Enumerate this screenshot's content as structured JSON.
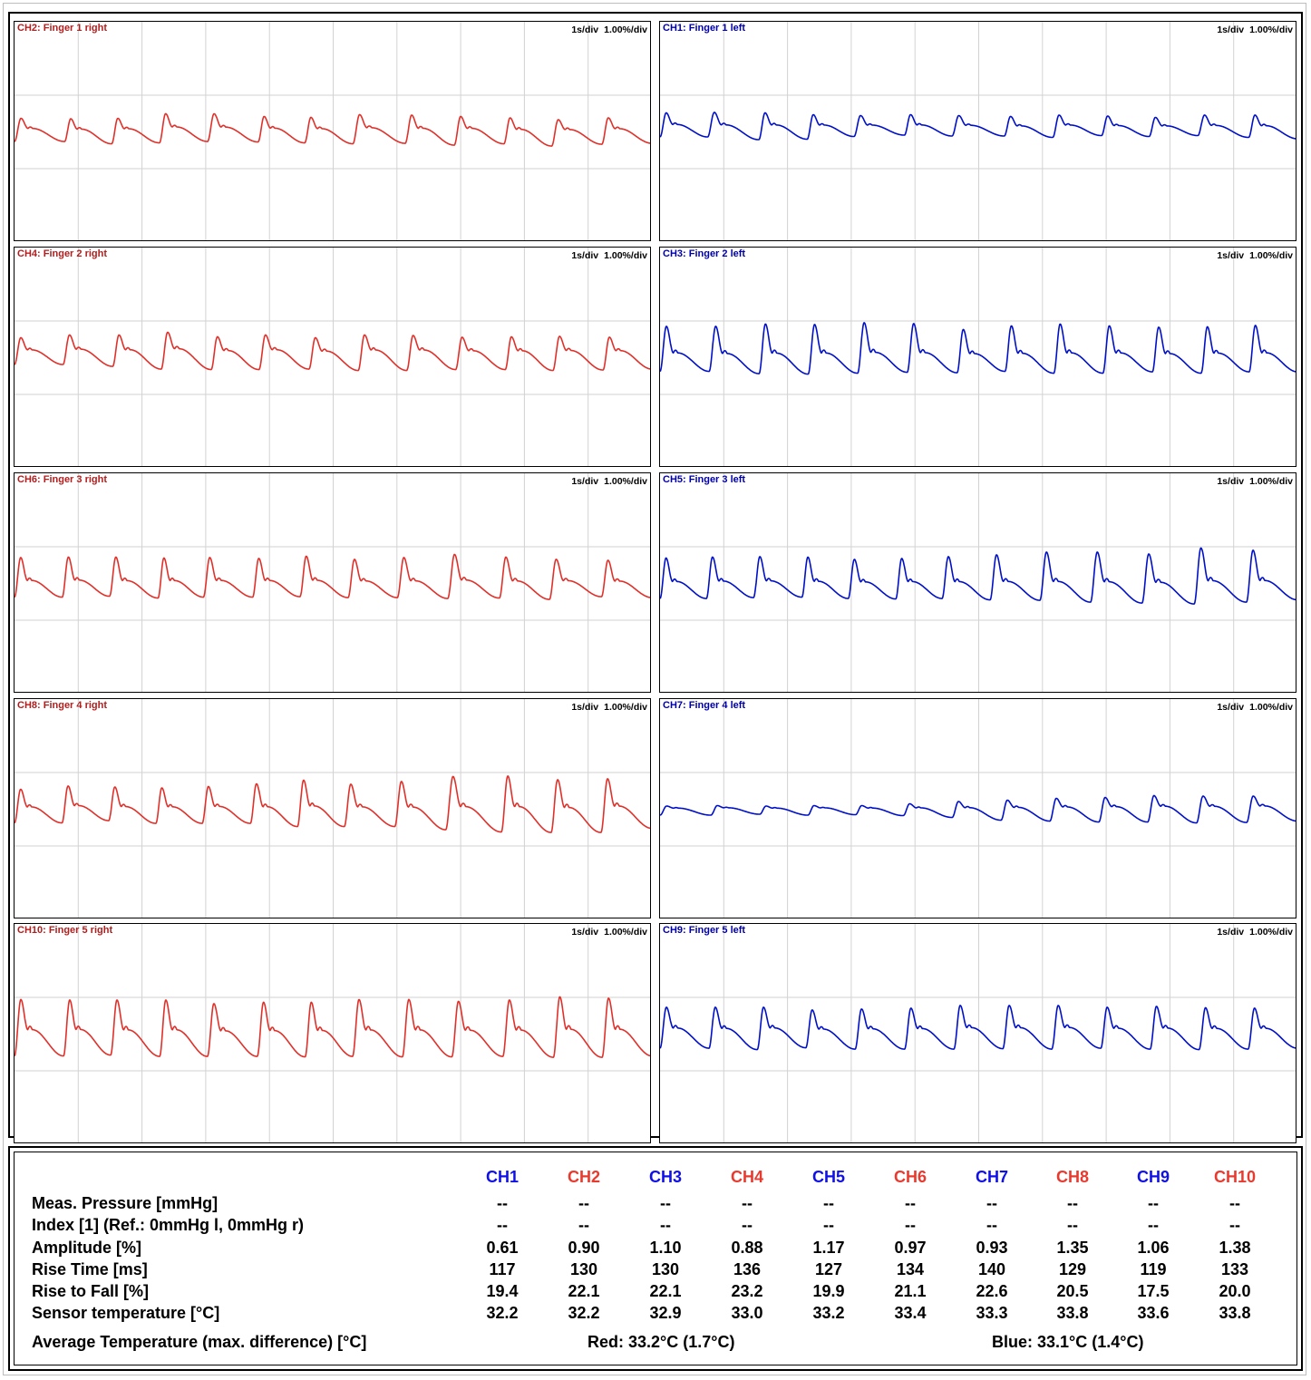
{
  "scale": {
    "time": "1s/div",
    "amplitude": "1.00%/div"
  },
  "colors": {
    "right": "#e0302a",
    "left": "#0010c8",
    "right_title": "#b01e1e",
    "left_title": "#0000a8"
  },
  "chart_data": [
    {
      "type": "line",
      "title": "CH2: Finger 1 right",
      "side": "right",
      "beats": [
        12.9,
        12.1,
        12.3,
        12.4,
        13.0,
        12.0,
        12.4,
        13.5,
        12.6,
        12.8,
        12.3,
        12.9,
        12.9
      ],
      "peaks": [
        0.23,
        0.22,
        0.23,
        0.33,
        0.33,
        0.27,
        0.25,
        0.31,
        0.3,
        0.27,
        0.24,
        0.2,
        0.24
      ],
      "troughs": [
        -0.28,
        -0.33,
        -0.31,
        -0.28,
        -0.29,
        -0.31,
        -0.33,
        -0.32,
        -0.36,
        -0.33,
        -0.38,
        -0.34,
        -0.32
      ],
      "start_phase": 0.88,
      "notch": 0.32,
      "grid_x": 10,
      "grid_y": 3
    },
    {
      "type": "line",
      "title": "CH1: Finger 1 left",
      "side": "left",
      "beats": [
        12.3,
        13.2,
        12.5,
        12.1,
        13.0,
        12.3,
        13.5,
        12.5,
        12.6,
        12.3,
        12.6,
        13.1,
        12.6
      ],
      "peaks": [
        0.35,
        0.36,
        0.35,
        0.31,
        0.29,
        0.31,
        0.29,
        0.27,
        0.3,
        0.28,
        0.25,
        0.3,
        0.3
      ],
      "troughs": [
        -0.18,
        -0.24,
        -0.23,
        -0.17,
        -0.14,
        -0.16,
        -0.16,
        -0.19,
        -0.15,
        -0.17,
        -0.15,
        -0.19,
        -0.22
      ],
      "start_phase": 0.9,
      "notch": 0.38,
      "grid_x": 10,
      "grid_y": 3
    },
    {
      "type": "line",
      "title": "CH4: Finger 2 right",
      "side": "right",
      "beats": [
        12.5,
        12.8,
        12.5,
        12.9,
        12.3,
        12.9,
        12.7,
        12.5,
        12.6,
        12.8,
        12.3,
        12.9,
        12.6
      ],
      "peaks": [
        0.37,
        0.43,
        0.43,
        0.49,
        0.39,
        0.43,
        0.37,
        0.43,
        0.42,
        0.38,
        0.39,
        0.4,
        0.38
      ],
      "troughs": [
        -0.22,
        -0.26,
        -0.32,
        -0.33,
        -0.33,
        -0.32,
        -0.35,
        -0.35,
        -0.33,
        -0.33,
        -0.35,
        -0.34,
        -0.32
      ],
      "start_phase": 0.05,
      "notch": 0.4,
      "grid_x": 10,
      "grid_y": 3
    },
    {
      "type": "line",
      "title": "CH3: Finger 2 left",
      "side": "left",
      "beats": [
        12.7,
        12.9,
        12.7,
        12.8,
        12.8,
        12.9,
        12.4,
        12.6,
        12.7,
        12.8,
        12.6,
        12.4,
        12.5
      ],
      "peaks": [
        0.62,
        0.62,
        0.67,
        0.66,
        0.7,
        0.68,
        0.55,
        0.63,
        0.67,
        0.63,
        0.6,
        0.61,
        0.64
      ],
      "troughs": [
        -0.37,
        -0.42,
        -0.43,
        -0.41,
        -0.39,
        -0.4,
        -0.37,
        -0.41,
        -0.41,
        -0.38,
        -0.41,
        -0.38,
        -0.38
      ],
      "start_phase": 0.05,
      "notch": 0.22,
      "grid_x": 10,
      "grid_y": 3
    },
    {
      "type": "line",
      "title": "CH6: Finger 3 right",
      "side": "right",
      "beats": [
        12.2,
        12.1,
        12.4,
        11.6,
        12.6,
        12.1,
        12.3,
        12.6,
        12.9,
        13.2,
        12.8,
        13.3,
        12.9
      ],
      "peaks": [
        0.5,
        0.51,
        0.51,
        0.49,
        0.5,
        0.48,
        0.53,
        0.46,
        0.5,
        0.57,
        0.51,
        0.46,
        0.44
      ],
      "troughs": [
        -0.37,
        -0.35,
        -0.39,
        -0.37,
        -0.37,
        -0.36,
        -0.38,
        -0.38,
        -0.4,
        -0.39,
        -0.42,
        -0.36,
        -0.38
      ],
      "start_phase": 0.05,
      "notch": 0.2,
      "grid_x": 10,
      "grid_y": 3
    },
    {
      "type": "line",
      "title": "CH5: Finger 3 left",
      "side": "left",
      "beats": [
        11.9,
        12.1,
        12.4,
        11.9,
        12.2,
        11.9,
        12.3,
        12.8,
        13.0,
        13.2,
        13.4,
        13.4,
        13.1
      ],
      "peaks": [
        0.49,
        0.51,
        0.52,
        0.51,
        0.46,
        0.48,
        0.52,
        0.56,
        0.62,
        0.62,
        0.58,
        0.71,
        0.66
      ],
      "troughs": [
        -0.4,
        -0.38,
        -0.37,
        -0.4,
        -0.41,
        -0.4,
        -0.43,
        -0.44,
        -0.48,
        -0.5,
        -0.52,
        -0.48,
        -0.43
      ],
      "start_phase": 0.05,
      "notch": 0.18,
      "grid_x": 10,
      "grid_y": 3
    },
    {
      "type": "line",
      "title": "CH8: Finger 4 right",
      "side": "right",
      "beats": [
        12.3,
        12.1,
        12.2,
        12.0,
        12.5,
        12.2,
        12.1,
        13.1,
        13.2,
        14.4,
        12.9,
        12.9,
        13.2
      ],
      "peaks": [
        0.37,
        0.44,
        0.42,
        0.4,
        0.43,
        0.49,
        0.57,
        0.48,
        0.54,
        0.65,
        0.66,
        0.58,
        0.6
      ],
      "troughs": [
        -0.37,
        -0.32,
        -0.38,
        -0.38,
        -0.38,
        -0.45,
        -0.45,
        -0.45,
        -0.52,
        -0.57,
        -0.58,
        -0.58,
        -0.49
      ],
      "start_phase": 0.02,
      "notch": 0.22,
      "grid_x": 10,
      "grid_y": 3
    },
    {
      "type": "line",
      "title": "CH7: Finger 4 left",
      "side": "left",
      "beats": [
        13.0,
        12.5,
        12.3,
        12.2,
        12.2,
        12.5,
        12.5,
        12.5,
        12.5,
        12.5,
        12.5,
        12.8,
        13.0
      ],
      "peaks": [
        0.0,
        0.01,
        0.0,
        0.01,
        0.01,
        0.05,
        0.1,
        0.13,
        0.17,
        0.19,
        0.23,
        0.22,
        0.22
      ],
      "troughs": [
        -0.2,
        -0.18,
        -0.2,
        -0.19,
        -0.21,
        -0.25,
        -0.31,
        -0.33,
        -0.35,
        -0.35,
        -0.37,
        -0.36,
        -0.33
      ],
      "start_phase": 0.05,
      "notch": 0.35,
      "grid_x": 10,
      "grid_y": 3
    },
    {
      "type": "line",
      "title": "CH10: Finger 5 right",
      "side": "right",
      "beats": [
        12.3,
        11.8,
        12.3,
        12.0,
        12.5,
        12.0,
        11.9,
        12.5,
        12.4,
        12.8,
        12.7,
        12.2,
        12.5
      ],
      "peaks": [
        0.69,
        0.68,
        0.68,
        0.68,
        0.6,
        0.63,
        0.63,
        0.69,
        0.69,
        0.65,
        0.68,
        0.75,
        0.72
      ],
      "troughs": [
        -0.55,
        -0.53,
        -0.56,
        -0.56,
        -0.56,
        -0.57,
        -0.56,
        -0.57,
        -0.57,
        -0.56,
        -0.58,
        -0.58,
        -0.55
      ],
      "start_phase": 0.05,
      "notch": 0.25,
      "grid_x": 10,
      "grid_y": 3
    },
    {
      "type": "line",
      "title": "CH9: Finger 5 left",
      "side": "left",
      "beats": [
        12.5,
        12.3,
        12.4,
        12.6,
        12.6,
        12.6,
        12.5,
        12.5,
        12.5,
        12.6,
        12.5,
        12.5,
        12.6
      ],
      "peaks": [
        0.52,
        0.52,
        0.52,
        0.46,
        0.48,
        0.5,
        0.56,
        0.56,
        0.56,
        0.52,
        0.54,
        0.51,
        0.5
      ],
      "troughs": [
        -0.38,
        -0.41,
        -0.37,
        -0.4,
        -0.4,
        -0.4,
        -0.39,
        -0.4,
        -0.38,
        -0.4,
        -0.41,
        -0.4,
        -0.38
      ],
      "start_phase": 0.05,
      "notch": 0.3,
      "grid_x": 10,
      "grid_y": 3
    }
  ],
  "table": {
    "channels": [
      {
        "name": "CH1",
        "color": "#1010e8"
      },
      {
        "name": "CH2",
        "color": "#e83a2e"
      },
      {
        "name": "CH3",
        "color": "#1010e8"
      },
      {
        "name": "CH4",
        "color": "#e83a2e"
      },
      {
        "name": "CH5",
        "color": "#1010e8"
      },
      {
        "name": "CH6",
        "color": "#e83a2e"
      },
      {
        "name": "CH7",
        "color": "#1010e8"
      },
      {
        "name": "CH8",
        "color": "#e83a2e"
      },
      {
        "name": "CH9",
        "color": "#1010e8"
      },
      {
        "name": "CH10",
        "color": "#e83a2e"
      }
    ],
    "rows": [
      {
        "label": "Meas. Pressure [mmHg]",
        "values": [
          "--",
          "--",
          "--",
          "--",
          "--",
          "--",
          "--",
          "--",
          "--",
          "--"
        ]
      },
      {
        "label": "Index [1] (Ref.: 0mmHg l, 0mmHg r)",
        "values": [
          "--",
          "--",
          "--",
          "--",
          "--",
          "--",
          "--",
          "--",
          "--",
          "--"
        ]
      },
      {
        "label": "Amplitude [%]",
        "values": [
          "0.61",
          "0.90",
          "1.10",
          "0.88",
          "1.17",
          "0.97",
          "0.93",
          "1.35",
          "1.06",
          "1.38"
        ]
      },
      {
        "label": "Rise Time [ms]",
        "values": [
          "117",
          "130",
          "130",
          "136",
          "127",
          "134",
          "140",
          "129",
          "119",
          "133"
        ]
      },
      {
        "label": "Rise to Fall [%]",
        "values": [
          "19.4",
          "22.1",
          "22.1",
          "23.2",
          "19.9",
          "21.1",
          "22.6",
          "20.5",
          "17.5",
          "20.0"
        ]
      },
      {
        "label": "Sensor temperature [°C]",
        "values": [
          "32.2",
          "32.2",
          "32.9",
          "33.0",
          "33.2",
          "33.4",
          "33.3",
          "33.8",
          "33.6",
          "33.8"
        ]
      }
    ],
    "average": {
      "label": "Average Temperature (max. difference) [°C]",
      "red": "Red: 33.2°C (1.7°C)",
      "blue": "Blue: 33.1°C (1.4°C)"
    }
  }
}
